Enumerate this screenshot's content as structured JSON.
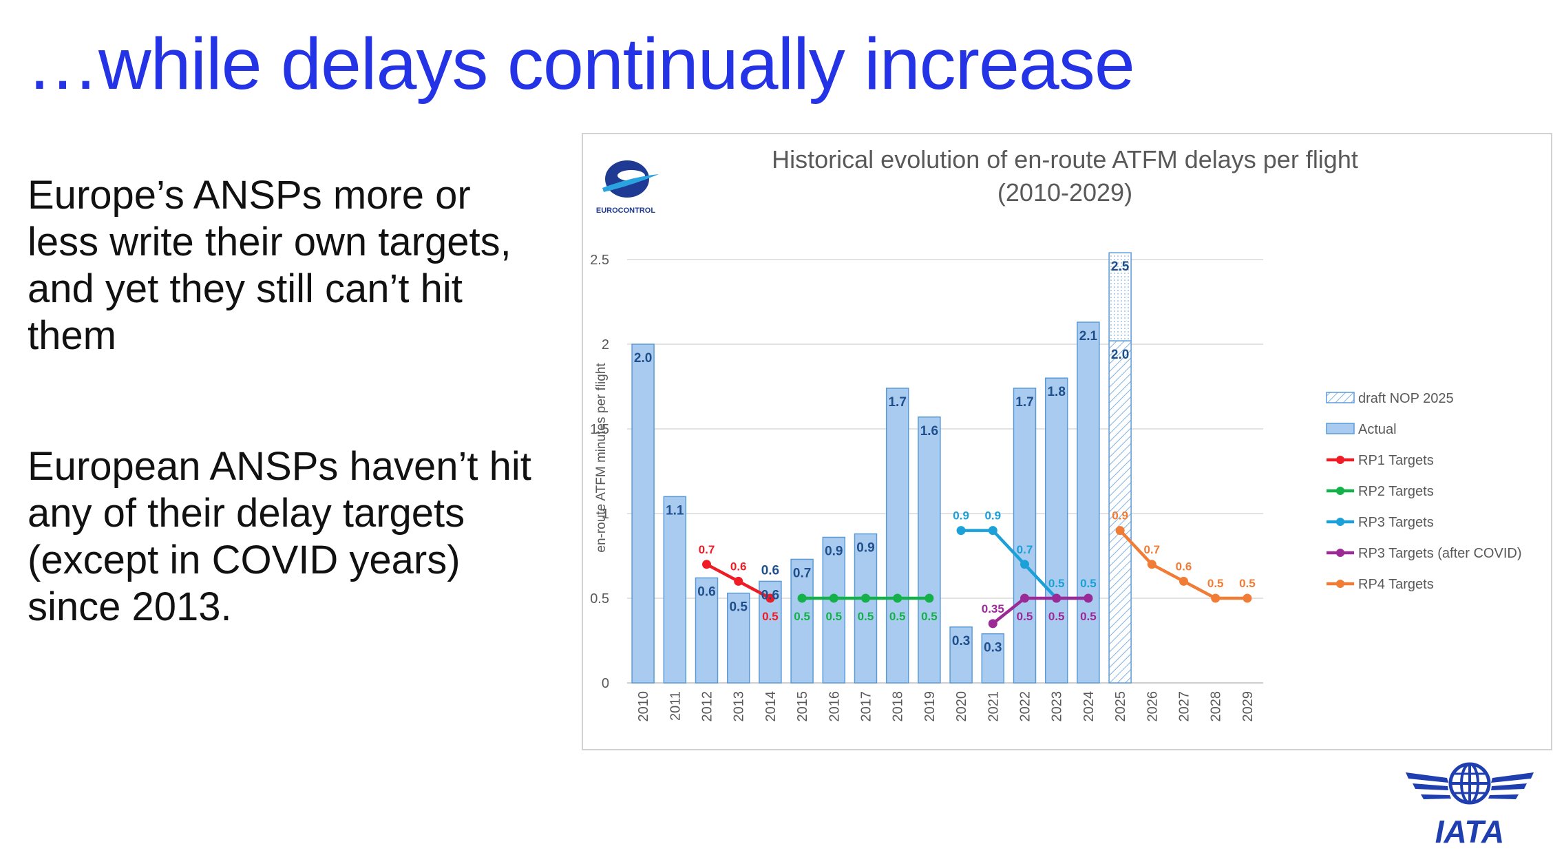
{
  "slide": {
    "title": "…while delays continually increase",
    "paragraphs": [
      "Europe’s ANSPs more or less write their own targets, and yet they still can’t hit them",
      "European ANSPs haven’t hit any of their delay targets (except in COVID years) since 2013."
    ],
    "logo_text": "IATA",
    "colors": {
      "title": "#2433e6",
      "iata": "#1f3fb0"
    }
  },
  "chart_data": {
    "type": "bar",
    "title_lines": [
      "Historical evolution of en-route ATFM delays per flight",
      "(2010-2029)"
    ],
    "logo_text": "EUROCONTROL",
    "ylabel": "en-route ATFM minutes per flight",
    "ylim": [
      0,
      2.5
    ],
    "yticks": [
      "0",
      "0.5",
      "1",
      "1.5",
      "2",
      "2.5"
    ],
    "categories": [
      "2010",
      "2011",
      "2012",
      "2013",
      "2014",
      "2015",
      "2016",
      "2017",
      "2018",
      "2019",
      "2020",
      "2021",
      "2022",
      "2023",
      "2024",
      "2025",
      "2026",
      "2027",
      "2028",
      "2029"
    ],
    "actual": {
      "name": "Actual",
      "values": [
        2.0,
        1.1,
        0.62,
        0.53,
        0.6,
        0.73,
        0.86,
        0.88,
        1.74,
        1.57,
        0.33,
        0.29,
        1.74,
        1.8,
        2.13,
        null,
        null,
        null,
        null,
        null
      ],
      "labels": [
        "2.0",
        "1.1",
        "0.6",
        "0.5",
        "0.6",
        "0.7",
        "0.9",
        "0.9",
        "1.7",
        "1.6",
        "0.3",
        "0.3",
        "1.7",
        "1.8",
        "2.1",
        "",
        "",
        "",
        "",
        ""
      ],
      "color": "#a9cbef",
      "edge": "#5a9ad8",
      "label_color": "#1f4e8c"
    },
    "forecast": {
      "name": "draft NOP 2025",
      "category": "2025",
      "low": 2.02,
      "high": 2.54,
      "label_low": "2.0",
      "label_high": "2.5"
    },
    "targets": [
      {
        "name": "RP1 Targets",
        "color": "#ee1c25",
        "points": [
          [
            "2012",
            0.7
          ],
          [
            "2013",
            0.6
          ],
          [
            "2014",
            0.5
          ]
        ],
        "labels": [
          "0.7",
          "0.6",
          "0.5"
        ]
      },
      {
        "name": "RP2 Targets",
        "color": "#14b04a",
        "points": [
          [
            "2015",
            0.5
          ],
          [
            "2016",
            0.5
          ],
          [
            "2017",
            0.5
          ],
          [
            "2018",
            0.5
          ],
          [
            "2019",
            0.5
          ]
        ],
        "labels": [
          "0.5",
          "0.5",
          "0.5",
          "0.5",
          "0.5"
        ]
      },
      {
        "name": "RP3 Targets",
        "color": "#1ca0d8",
        "points": [
          [
            "2020",
            0.9
          ],
          [
            "2021",
            0.9
          ],
          [
            "2022",
            0.7
          ],
          [
            "2023",
            0.5
          ],
          [
            "2024",
            0.5
          ]
        ],
        "labels": [
          "0.9",
          "0.9",
          "0.7",
          "0.5",
          "0.5"
        ]
      },
      {
        "name": "RP3 Targets (after COVID)",
        "color": "#9c2a96",
        "points": [
          [
            "2021",
            0.35
          ],
          [
            "2022",
            0.5
          ],
          [
            "2023",
            0.5
          ],
          [
            "2024",
            0.5
          ]
        ],
        "labels": [
          "0.35",
          "0.5",
          "0.5",
          "0.5"
        ]
      },
      {
        "name": "RP4 Targets",
        "color": "#f07c36",
        "points": [
          [
            "2025",
            0.9
          ],
          [
            "2026",
            0.7
          ],
          [
            "2027",
            0.6
          ],
          [
            "2028",
            0.5
          ],
          [
            "2029",
            0.5
          ]
        ],
        "labels": [
          "0.9",
          "0.7",
          "0.6",
          "0.5",
          "0.5"
        ]
      }
    ],
    "extra_labels": [
      {
        "category": "2014",
        "value": 0.6,
        "text": "0.6",
        "color": "#1f4e8c"
      }
    ],
    "legend": [
      "draft NOP 2025",
      "Actual",
      "RP1 Targets",
      "RP2 Targets",
      "RP3 Targets",
      "RP3 Targets (after COVID)",
      "RP4 Targets"
    ],
    "legend_position": "right",
    "grid": true
  }
}
